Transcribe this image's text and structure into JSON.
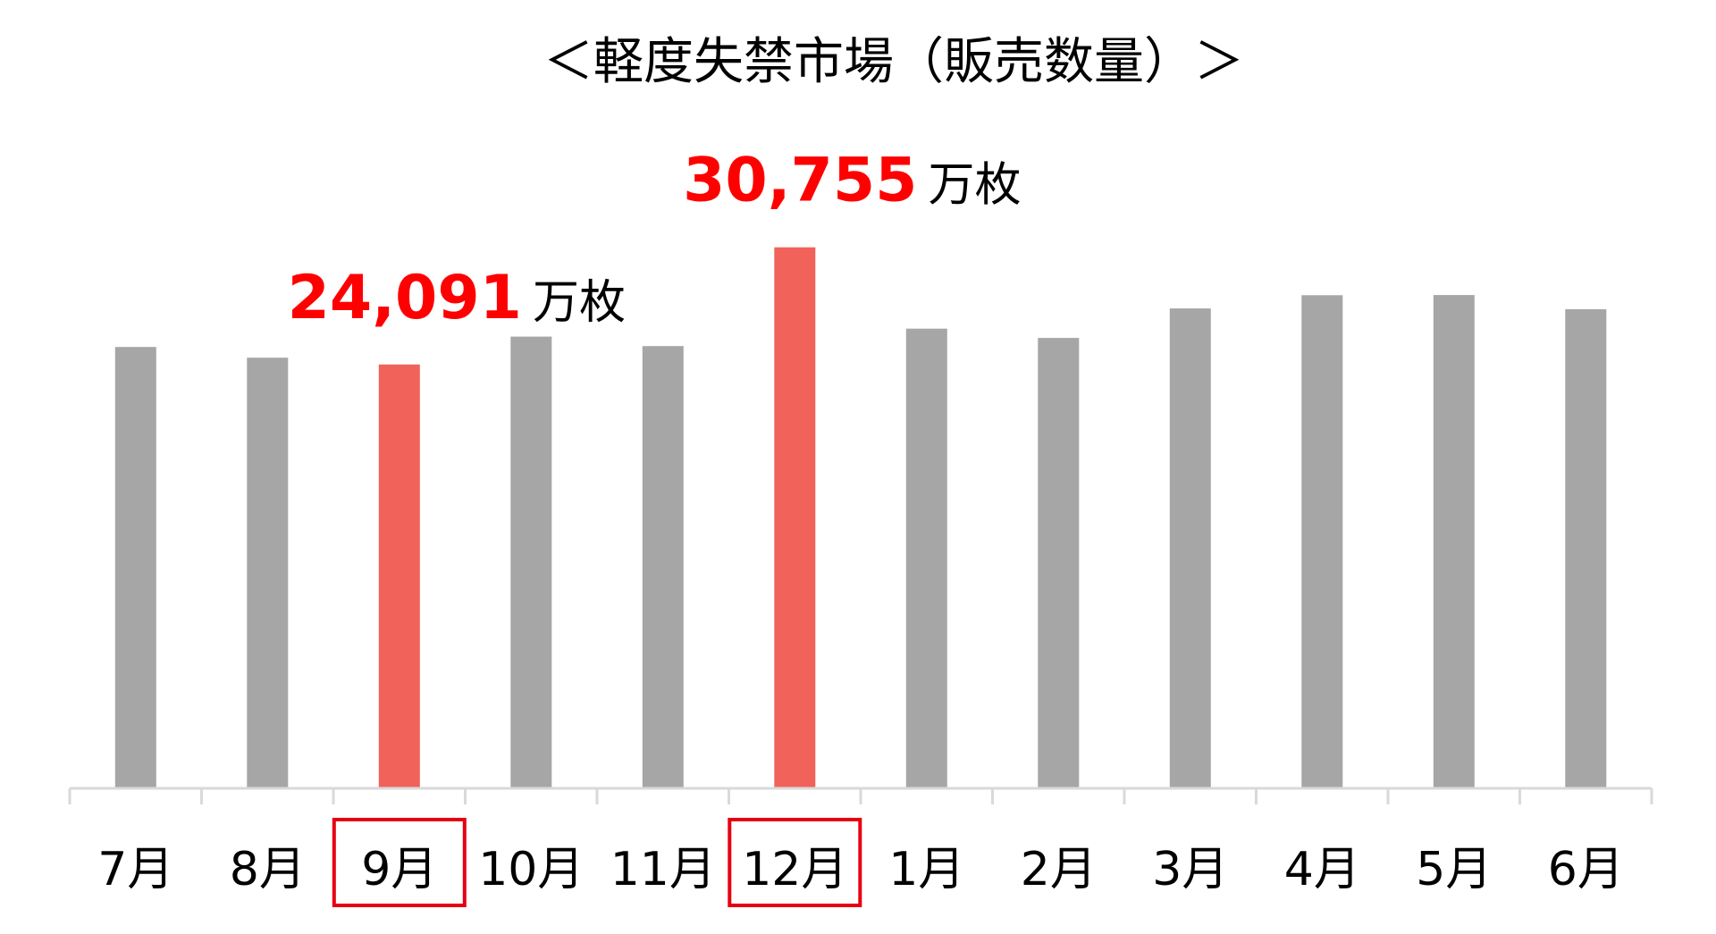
{
  "chart_data": {
    "type": "bar",
    "title": "＜軽度失禁市場（販売数量）＞",
    "categories": [
      "7月",
      "8月",
      "9月",
      "10月",
      "11月",
      "12月",
      "1月",
      "2月",
      "3月",
      "4月",
      "5月",
      "6月"
    ],
    "values": [
      25090,
      24480,
      24091,
      25680,
      25140,
      30755,
      26130,
      25600,
      27280,
      28030,
      28040,
      27230
    ],
    "highlight_indices": [
      2,
      5
    ],
    "annotations": [
      {
        "index": 2,
        "value_text": "24,091",
        "unit": "万枚"
      },
      {
        "index": 5,
        "value_text": "30,755",
        "unit": "万枚"
      }
    ],
    "boxed_category_indices": [
      2,
      5
    ],
    "ylim": [
      0,
      31500
    ],
    "xlabel": "",
    "ylabel": "",
    "grid": false,
    "legend": "none",
    "colors": {
      "bar": "#a6a6a6",
      "highlight_bar": "#f0625a",
      "annotation_number": "#ff0000",
      "category_box": "#e60012",
      "axis": "#d9d9d9"
    }
  }
}
